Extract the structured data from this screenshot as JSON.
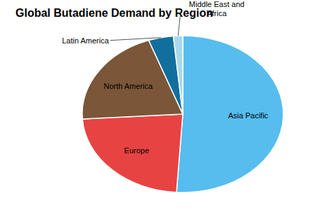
{
  "chart_data": {
    "type": "pie",
    "title": "Global Butadiene Demand by Region",
    "categories": [
      "Asia Pacific",
      "Europe",
      "North America",
      "Latin America",
      "Middle East and Africa"
    ],
    "values": [
      51,
      23,
      20.5,
      4,
      1.5
    ],
    "colors": [
      "#56bdee",
      "#e84343",
      "#7b5638",
      "#116f9e",
      "#a9d8ec"
    ]
  }
}
